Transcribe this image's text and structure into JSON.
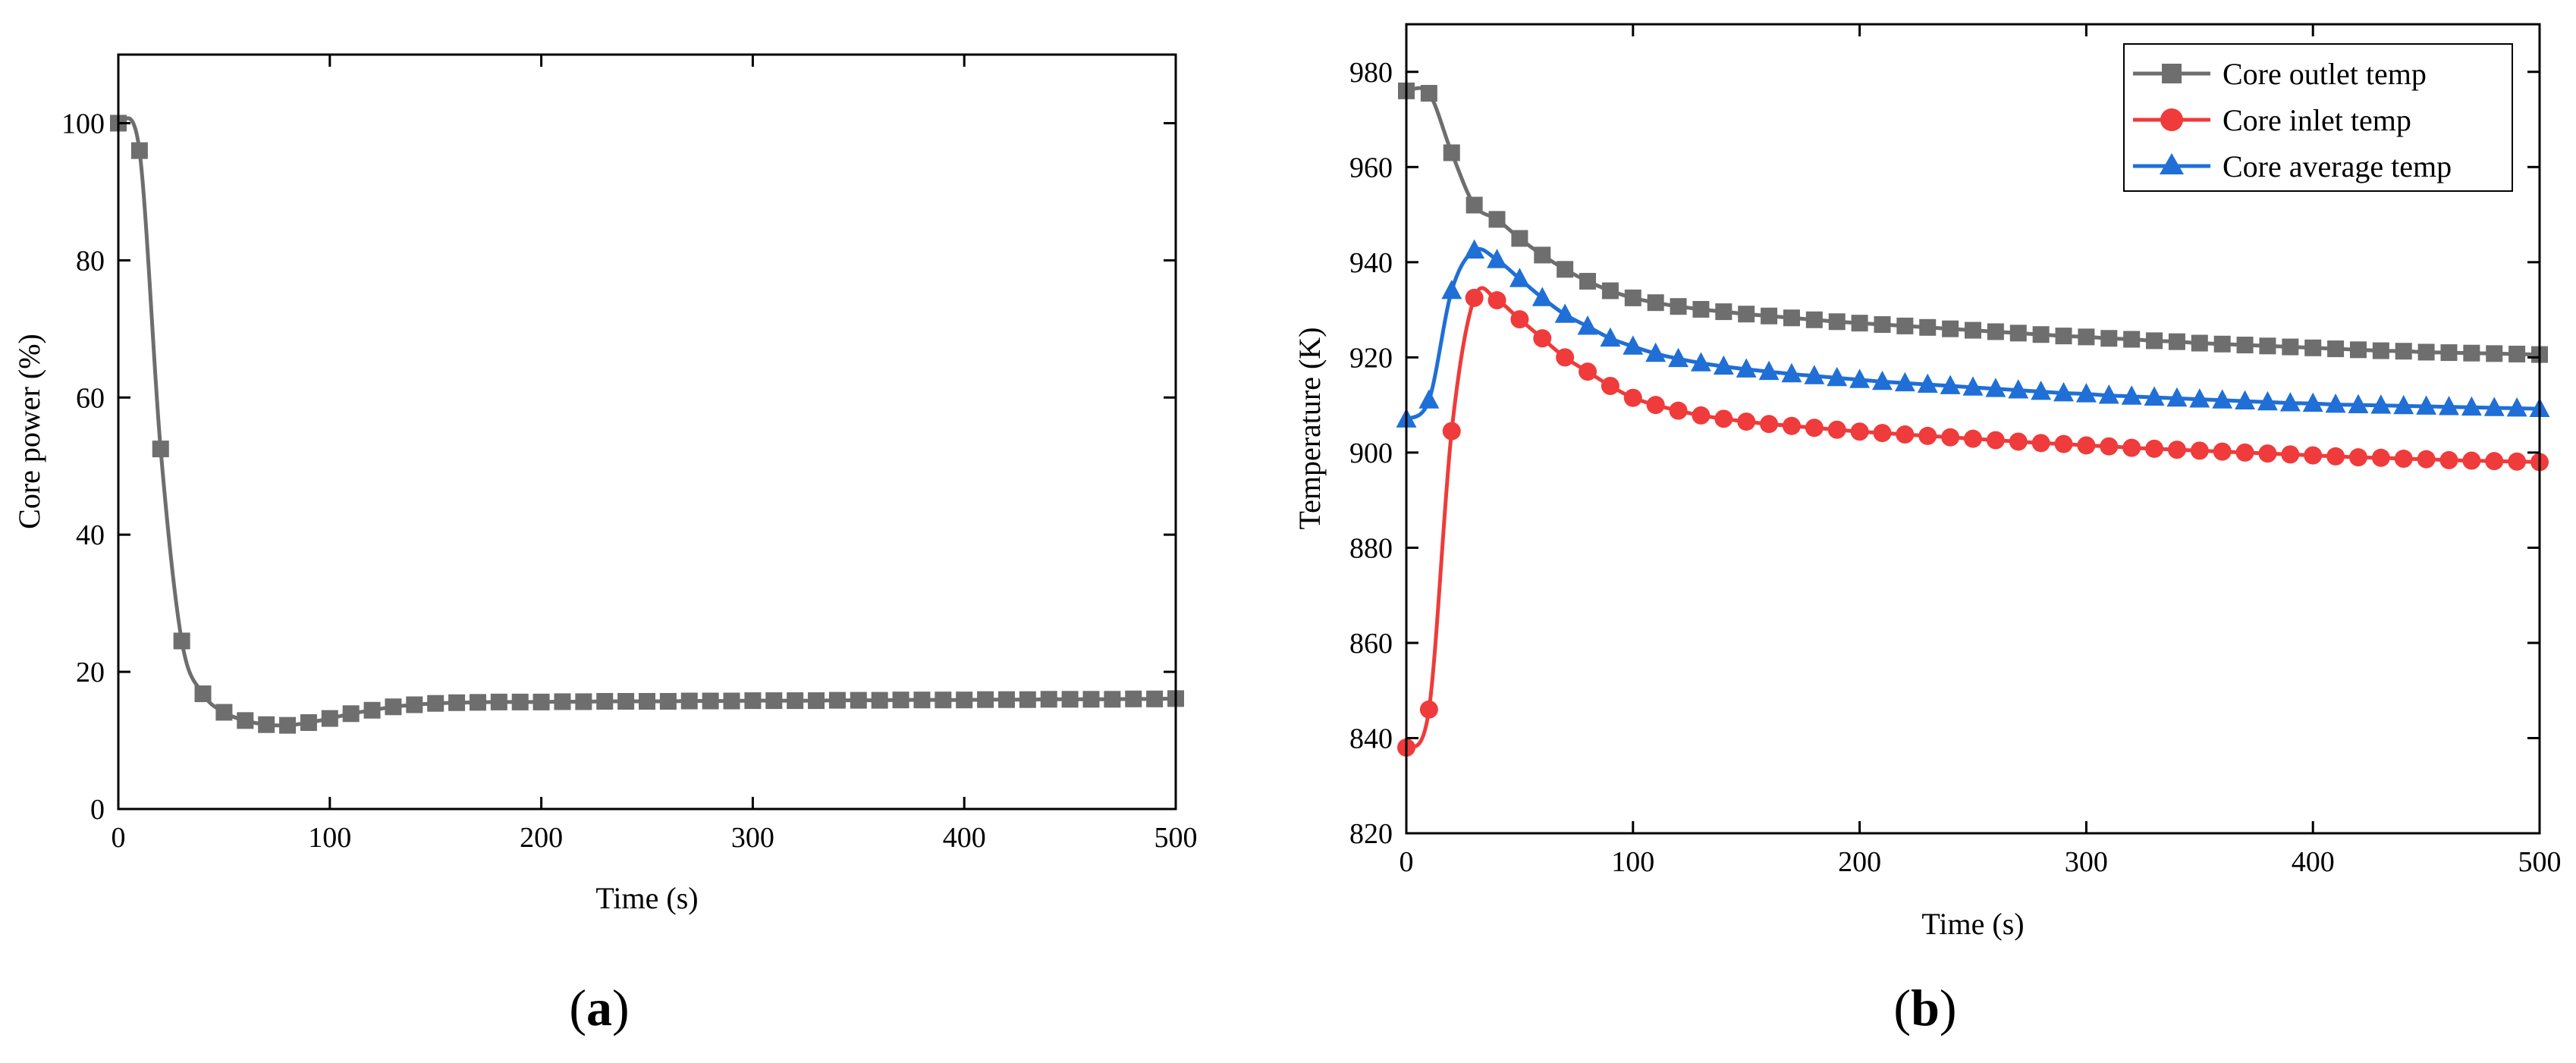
{
  "chart_data": [
    {
      "type": "line",
      "panel": "a",
      "panel_label": "a",
      "xlabel": "Time (s)",
      "ylabel": "Core power (%)",
      "xlim": [
        0,
        500
      ],
      "ylim": [
        0,
        110
      ],
      "x_ticks": [
        0,
        100,
        200,
        300,
        400,
        500
      ],
      "y_ticks": [
        0,
        20,
        40,
        60,
        80,
        100
      ],
      "grid": false,
      "legend": null,
      "series": [
        {
          "name": "Core power",
          "color": "#6e6e6e",
          "marker": "square",
          "x": [
            0,
            10,
            20,
            30,
            40,
            50,
            60,
            70,
            80,
            90,
            100,
            110,
            120,
            130,
            140,
            150,
            160,
            170,
            180,
            190,
            200,
            210,
            220,
            230,
            240,
            250,
            260,
            270,
            280,
            290,
            300,
            310,
            320,
            330,
            340,
            350,
            360,
            370,
            380,
            390,
            400,
            410,
            420,
            430,
            440,
            450,
            460,
            470,
            480,
            490,
            500
          ],
          "y": [
            100,
            96,
            52.5,
            24.5,
            16.8,
            14.1,
            12.9,
            12.3,
            12.2,
            12.6,
            13.2,
            13.9,
            14.4,
            14.9,
            15.2,
            15.4,
            15.5,
            15.55,
            15.6,
            15.6,
            15.6,
            15.65,
            15.65,
            15.7,
            15.7,
            15.7,
            15.7,
            15.75,
            15.75,
            15.75,
            15.8,
            15.8,
            15.8,
            15.8,
            15.85,
            15.85,
            15.85,
            15.9,
            15.9,
            15.9,
            15.9,
            15.95,
            15.95,
            15.95,
            16.0,
            16.0,
            16.0,
            16.0,
            16.05,
            16.05,
            16.1
          ]
        }
      ]
    },
    {
      "type": "line",
      "panel": "b",
      "panel_label": "b",
      "xlabel": "Time (s)",
      "ylabel": "Temperature (K)",
      "xlim": [
        0,
        500
      ],
      "ylim": [
        820,
        990
      ],
      "x_ticks": [
        0,
        100,
        200,
        300,
        400,
        500
      ],
      "y_ticks": [
        820,
        840,
        860,
        880,
        900,
        920,
        940,
        960,
        980
      ],
      "grid": false,
      "legend": "top-right",
      "series": [
        {
          "name": "Core outlet temp",
          "color": "#6e6e6e",
          "marker": "square",
          "x": [
            0,
            10,
            20,
            30,
            40,
            50,
            60,
            70,
            80,
            90,
            100,
            110,
            120,
            130,
            140,
            150,
            160,
            170,
            180,
            190,
            200,
            210,
            220,
            230,
            240,
            250,
            260,
            270,
            280,
            290,
            300,
            310,
            320,
            330,
            340,
            350,
            360,
            370,
            380,
            390,
            400,
            410,
            420,
            430,
            440,
            450,
            460,
            470,
            480,
            490,
            500
          ],
          "y": [
            976,
            975.5,
            963,
            952,
            949,
            945,
            941.5,
            938.5,
            936,
            934,
            932.5,
            931.5,
            930.7,
            930.1,
            929.6,
            929.1,
            928.7,
            928.3,
            927.9,
            927.5,
            927.2,
            926.9,
            926.6,
            926.3,
            926.0,
            925.7,
            925.4,
            925.1,
            924.8,
            924.5,
            924.3,
            924.0,
            923.8,
            923.5,
            923.3,
            923.0,
            922.8,
            922.6,
            922.4,
            922.2,
            922.0,
            921.8,
            921.6,
            921.4,
            921.3,
            921.1,
            921.0,
            920.9,
            920.8,
            920.7,
            920.6
          ]
        },
        {
          "name": "Core inlet temp",
          "color": "#ef3b3b",
          "marker": "circle",
          "x": [
            0,
            10,
            20,
            30,
            40,
            50,
            60,
            70,
            80,
            90,
            100,
            110,
            120,
            130,
            140,
            150,
            160,
            170,
            180,
            190,
            200,
            210,
            220,
            230,
            240,
            250,
            260,
            270,
            280,
            290,
            300,
            310,
            320,
            330,
            340,
            350,
            360,
            370,
            380,
            390,
            400,
            410,
            420,
            430,
            440,
            450,
            460,
            470,
            480,
            490,
            500
          ],
          "y": [
            838,
            846,
            904.5,
            932.5,
            932,
            928,
            924,
            920,
            917,
            914,
            911.5,
            910,
            908.8,
            907.8,
            907.1,
            906.5,
            906.0,
            905.6,
            905.2,
            904.8,
            904.4,
            904.1,
            903.8,
            903.5,
            903.2,
            902.9,
            902.6,
            902.3,
            902.0,
            901.8,
            901.5,
            901.3,
            901.0,
            900.8,
            900.6,
            900.4,
            900.2,
            900.0,
            899.8,
            899.6,
            899.4,
            899.2,
            899.0,
            898.9,
            898.7,
            898.6,
            898.4,
            898.3,
            898.2,
            898.1,
            898.0
          ]
        },
        {
          "name": "Core average temp",
          "color": "#1f6fd6",
          "marker": "triangle",
          "x": [
            0,
            10,
            20,
            30,
            40,
            50,
            60,
            70,
            80,
            90,
            100,
            110,
            120,
            130,
            140,
            150,
            160,
            170,
            180,
            190,
            200,
            210,
            220,
            230,
            240,
            250,
            260,
            270,
            280,
            290,
            300,
            310,
            320,
            330,
            340,
            350,
            360,
            370,
            380,
            390,
            400,
            410,
            420,
            430,
            440,
            450,
            460,
            470,
            480,
            490,
            500
          ],
          "y": [
            907,
            911,
            934,
            942.5,
            940.5,
            936.5,
            932.5,
            929,
            926.5,
            924,
            922.3,
            920.8,
            919.7,
            918.8,
            918.1,
            917.5,
            917.0,
            916.5,
            916.1,
            915.7,
            915.3,
            914.9,
            914.6,
            914.3,
            914.0,
            913.7,
            913.4,
            913.1,
            912.8,
            912.5,
            912.3,
            912.0,
            911.8,
            911.6,
            911.4,
            911.2,
            911.0,
            910.8,
            910.6,
            910.4,
            910.3,
            910.1,
            910.0,
            909.9,
            909.8,
            909.7,
            909.6,
            909.5,
            909.4,
            909.3,
            909.2
          ]
        }
      ]
    }
  ]
}
